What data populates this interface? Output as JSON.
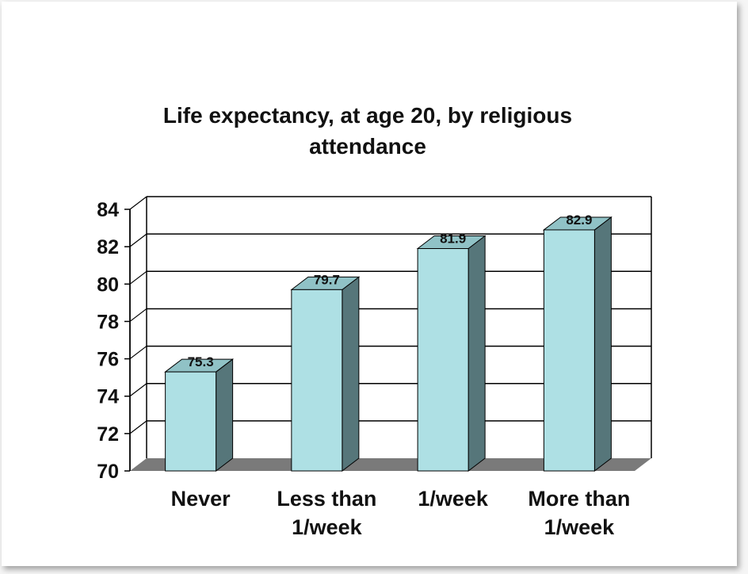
{
  "chart_data": {
    "type": "bar",
    "title_lines": [
      "Life expectancy, at age 20, by religious",
      "attendance"
    ],
    "categories": [
      [
        "Never"
      ],
      [
        "Less than",
        "1/week"
      ],
      [
        "1/week"
      ],
      [
        "More than",
        "1/week"
      ]
    ],
    "values": [
      75.3,
      79.7,
      81.9,
      82.9
    ],
    "value_labels": [
      "75.3",
      "79.7",
      "81.9",
      "82.9"
    ],
    "ylim": [
      70,
      84
    ],
    "yticks": [
      "70",
      "72",
      "74",
      "76",
      "78",
      "80",
      "82",
      "84"
    ],
    "grid": true,
    "legend": "none",
    "xlabel": "",
    "ylabel": "",
    "colors": {
      "bar_front": "#aee0e4",
      "bar_top": "#90c2c6",
      "bar_side": "#56767a",
      "floor": "#7a7a7a",
      "gridline": "#000000"
    }
  }
}
